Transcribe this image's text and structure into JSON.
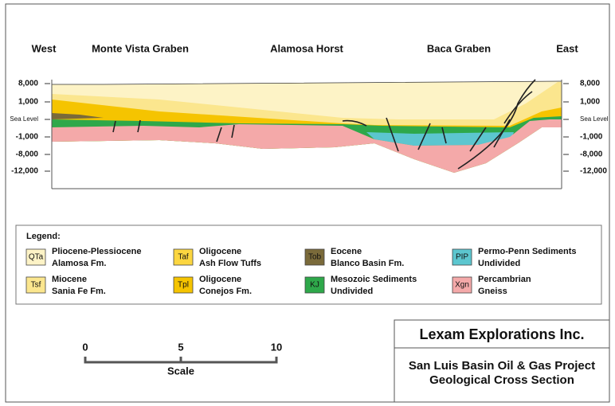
{
  "header": {
    "labels": [
      "West",
      "Monte Vista Graben",
      "Alamosa Horst",
      "Baca Graben",
      "East"
    ]
  },
  "elevations": {
    "left": [
      "8,000",
      "1,000",
      "Sea Level",
      "-1,000",
      "-8,000",
      "-12,000"
    ],
    "right": [
      "8,000",
      "1,000",
      "Sea Level",
      "-1,000",
      "-8,000",
      "-12,000"
    ]
  },
  "legend": {
    "title": "Legend:",
    "items": [
      {
        "code": "QTa",
        "line1": "Pliocene-Plessiocene",
        "line2": "Alamosa Fm."
      },
      {
        "code": "Taf",
        "line1": "Oligocene",
        "line2": "Ash Flow Tuffs"
      },
      {
        "code": "Tob",
        "line1": "Eocene",
        "line2": "Blanco Basin Fm."
      },
      {
        "code": "PIP",
        "line1": "Permo-Penn Sediments",
        "line2": "Undivided"
      },
      {
        "code": "Tsf",
        "line1": "Miocene",
        "line2": "Sania Fe Fm."
      },
      {
        "code": "Tpl",
        "line1": "Oligocene",
        "line2": "Conejos Fm."
      },
      {
        "code": "KJ",
        "line1": "Mesozoic Sediments",
        "line2": "Undivided"
      },
      {
        "code": "Xgn",
        "line1": "Percambrian",
        "line2": "Gneiss"
      }
    ]
  },
  "scale": {
    "ticks": [
      "0",
      "5",
      "10"
    ],
    "label": "Scale"
  },
  "title_block": {
    "company": "Lexam Explorations Inc.",
    "project": "San Luis Basin Oil & Gas Project",
    "subtitle": "Geological Cross Section"
  }
}
